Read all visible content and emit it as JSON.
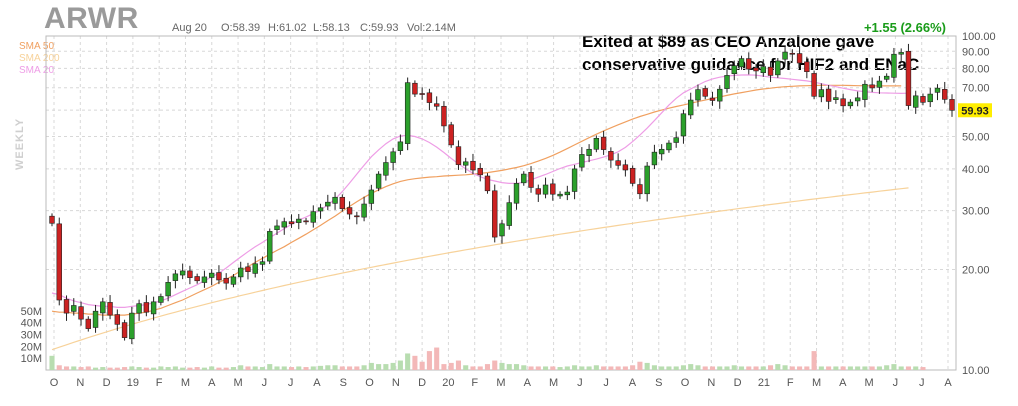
{
  "header": {
    "ticker": "ARWR",
    "date": "Aug 20",
    "open": "O:58.39",
    "high": "H:61.02",
    "low": "L:58.13",
    "close": "C:59.93",
    "volume": "Vol:2.14M",
    "change": "+1.55 (2.66%)",
    "period": "WEEKLY"
  },
  "legend": [
    {
      "label": "SMA 50",
      "color": "#f0a060"
    },
    {
      "label": "SMA 200",
      "color": "#f7d29a"
    },
    {
      "label": "SMA 20",
      "color": "#ee9de6"
    }
  ],
  "annotation": {
    "line1": "Exited at $89 as CEO Anzalone gave",
    "line2": "conservative guidance for HIF2 and ENaC"
  },
  "colors": {
    "up": "#2ba02b",
    "down": "#cc2222",
    "volume_up": "#b8ddb0",
    "volume_down": "#f3b8b8",
    "grid": "#d8d8d8",
    "last_price_bg": "#ffee00"
  },
  "chart_data": {
    "type": "candlestick",
    "frequency": "weekly",
    "x_tick_labels": [
      "O",
      "N",
      "D",
      "19",
      "F",
      "M",
      "A",
      "M",
      "J",
      "J",
      "A",
      "S",
      "O",
      "N",
      "D",
      "20",
      "F",
      "M",
      "A",
      "M",
      "J",
      "J",
      "A",
      "S",
      "O",
      "N",
      "D",
      "21",
      "F",
      "M",
      "A",
      "M",
      "J",
      "J",
      "A"
    ],
    "y_tick_labels": [
      "100.00",
      "90.00",
      "80.00",
      "70.00",
      "60.00",
      "50.00",
      "40.00",
      "30.00",
      "20.00",
      "10.00"
    ],
    "volume_tick_labels": [
      "50M",
      "40M",
      "30M",
      "20M",
      "10M"
    ],
    "ylim": [
      10,
      100
    ],
    "scale": "log",
    "last_price": "59.93",
    "close": [
      27.5,
      16.2,
      14.8,
      15.6,
      14.2,
      13.3,
      15.0,
      16.0,
      14.6,
      13.7,
      12.5,
      14.8,
      15.8,
      14.9,
      16.0,
      16.6,
      18.3,
      19.4,
      19.8,
      18.9,
      18.5,
      19.0,
      19.5,
      18.6,
      18.2,
      19.0,
      20.2,
      19.7,
      20.8,
      21.1,
      26.0,
      27.0,
      27.8,
      27.4,
      28.3,
      27.8,
      29.8,
      30.6,
      31.8,
      32.9,
      30.4,
      29.3,
      28.8,
      31.4,
      34.6,
      38.6,
      41.8,
      45.0,
      48.2,
      72.5,
      67.0,
      66.8,
      63.2,
      61.6,
      53.8,
      47.2,
      41.2,
      42.0,
      39.7,
      38.4,
      34.4,
      25.0,
      27.4,
      31.7,
      36.2,
      38.6,
      35.2,
      33.6,
      35.8,
      33.6,
      33.6,
      34.1,
      40.0,
      44.2,
      45.8,
      49.4,
      45.7,
      42.5,
      41.0,
      39.7,
      36.2,
      33.7,
      40.8,
      44.9,
      45.8,
      47.8,
      49.6,
      58.5,
      64.3,
      69.1,
      66.0,
      64.1,
      69.3,
      76.2,
      81.5,
      85.6,
      79.6,
      78.6,
      81.0,
      76.2,
      84.2,
      89.5,
      88.6,
      83.0,
      78.2,
      66.0,
      69.1,
      63.7,
      65.4,
      61.8,
      63.4,
      65.3,
      71.7,
      69.9,
      73.3,
      75.8,
      88.2,
      89.3,
      61.9,
      66.2,
      63.3,
      67.0,
      69.8,
      64.6,
      59.9
    ],
    "sma20": [
      17,
      16.8,
      16.4,
      16.1,
      15.9,
      15.7,
      15.6,
      15.5,
      15.5,
      15.4,
      15.4,
      15.5,
      15.6,
      15.7,
      15.9,
      16.1,
      16.4,
      16.8,
      17.2,
      17.6,
      18.0,
      18.5,
      19.0,
      19.5,
      20.2,
      21.0,
      21.8,
      22.6,
      23.4,
      24.1,
      24.9,
      25.7,
      26.5,
      27.3,
      28.1,
      28.7,
      29.4,
      30.2,
      31.2,
      32.5,
      34.2,
      36.3,
      38.6,
      41.0,
      43.5,
      45.6,
      47.6,
      49.2,
      50.2,
      50.4,
      50.0,
      49.2,
      48.0,
      46.5,
      44.8,
      43.0,
      41.4,
      40.0,
      38.8,
      37.9,
      37.2,
      36.8,
      36.4,
      36.2,
      36.2,
      36.5,
      37.1,
      37.8,
      38.5,
      39.3,
      40.1,
      40.8,
      41.3,
      41.8,
      42.3,
      42.8,
      43.4,
      44.1,
      45.0,
      46.4,
      48.3,
      50.5,
      53.0,
      55.8,
      58.9,
      62.1,
      65.1,
      67.6,
      69.4,
      71.3,
      73.1,
      74.4,
      75.3,
      75.9,
      76.2,
      76.4,
      76.5,
      76.3,
      75.8,
      75.3,
      74.9,
      74.6,
      74.2,
      73.8,
      73.4,
      72.7,
      72.0,
      71.2,
      70.5,
      69.8,
      69.1,
      68.5,
      68.1,
      67.8,
      67.6,
      67.5,
      67.4,
      67.3,
      67.4
    ],
    "sma50": [
      15.0,
      14.9,
      14.9,
      14.8,
      14.8,
      14.7,
      14.7,
      14.6,
      14.6,
      14.6,
      14.6,
      14.7,
      14.8,
      14.9,
      15.1,
      15.3,
      15.6,
      15.9,
      16.2,
      16.6,
      17.0,
      17.4,
      17.8,
      18.3,
      18.7,
      19.2,
      19.8,
      20.4,
      21.0,
      21.6,
      22.2,
      22.8,
      23.4,
      24.1,
      24.8,
      25.5,
      26.3,
      27.1,
      28.0,
      28.9,
      29.9,
      30.9,
      31.9,
      32.9,
      33.8,
      34.6,
      35.4,
      36.1,
      36.7,
      37.1,
      37.4,
      37.6,
      37.8,
      37.9,
      38.1,
      38.2,
      38.3,
      38.4,
      38.6,
      38.8,
      39.0,
      39.3,
      39.6,
      40.0,
      40.4,
      40.9,
      41.5,
      42.2,
      43.0,
      43.9,
      44.9,
      46.0,
      47.2,
      48.4,
      49.6,
      50.8,
      52.0,
      53.1,
      54.2,
      55.3,
      56.4,
      57.4,
      58.3,
      59.2,
      60.0,
      60.8,
      61.5,
      62.2,
      62.9,
      63.6,
      64.3,
      65.0,
      65.7,
      66.4,
      67.1,
      67.7,
      68.3,
      68.9,
      69.4,
      69.8,
      70.2,
      70.5,
      70.7,
      70.9,
      71.0,
      71.1,
      71.2,
      71.2,
      71.2,
      71.2,
      71.1,
      71.0,
      71.0,
      70.9,
      70.9,
      70.9,
      70.9,
      70.9
    ],
    "sma200": [
      11.5,
      11.7,
      11.9,
      12.1,
      12.3,
      12.5,
      12.7,
      12.9,
      13.1,
      13.3,
      13.5,
      13.7,
      13.9,
      14.1,
      14.3,
      14.5,
      14.7,
      14.9,
      15.1,
      15.3,
      15.5,
      15.7,
      15.9,
      16.1,
      16.3,
      16.5,
      16.7,
      16.9,
      17.1,
      17.3,
      17.5,
      17.7,
      17.9,
      18.1,
      18.3,
      18.5,
      18.7,
      18.9,
      19.1,
      19.3,
      19.5,
      19.7,
      19.9,
      20.1,
      20.3,
      20.5,
      20.7,
      20.9,
      21.1,
      21.3,
      21.5,
      21.7,
      21.9,
      22.1,
      22.3,
      22.5,
      22.7,
      22.9,
      23.1,
      23.3,
      23.5,
      23.7,
      23.9,
      24.1,
      24.3,
      24.5,
      24.7,
      24.9,
      25.1,
      25.3,
      25.5,
      25.7,
      25.9,
      26.1,
      26.3,
      26.5,
      26.7,
      26.9,
      27.1,
      27.3,
      27.5,
      27.7,
      27.9,
      28.1,
      28.3,
      28.5,
      28.7,
      28.9,
      29.1,
      29.3,
      29.5,
      29.7,
      29.9,
      30.1,
      30.3,
      30.5,
      30.7,
      30.9,
      31.1,
      31.3,
      31.5,
      31.7,
      31.9,
      32.1,
      32.3,
      32.5,
      32.7,
      32.9,
      33.1,
      33.3,
      33.5,
      33.7,
      33.9,
      34.1,
      34.3,
      34.5,
      34.7,
      34.9,
      35.1
    ],
    "volume_m": [
      12,
      4,
      3,
      3,
      2.5,
      3,
      2,
      2.5,
      2,
      2,
      2.5,
      3,
      2.5,
      2,
      2,
      3,
      2.5,
      3,
      2,
      2,
      2.5,
      2,
      3,
      2,
      2,
      2.5,
      4,
      3,
      3,
      2.5,
      5,
      3,
      3,
      2.5,
      3,
      2.5,
      3,
      3.5,
      4,
      4,
      3,
      3,
      3,
      4,
      6,
      5,
      5,
      6,
      8,
      14,
      12,
      7,
      16,
      19,
      5,
      6,
      8,
      4,
      3,
      3,
      5,
      8,
      6,
      5,
      5,
      4,
      3,
      3,
      3,
      3,
      2.5,
      3,
      4,
      3,
      3,
      4,
      3,
      3,
      3,
      3,
      4,
      7,
      6,
      4,
      3,
      3,
      3,
      4,
      5,
      4,
      3,
      3,
      3,
      3,
      4,
      3,
      3,
      3,
      3,
      4,
      5,
      4,
      3,
      3,
      3,
      16,
      3,
      3,
      3,
      3,
      3,
      3,
      3,
      3,
      3,
      4,
      5,
      3,
      3,
      3,
      2.5
    ]
  }
}
